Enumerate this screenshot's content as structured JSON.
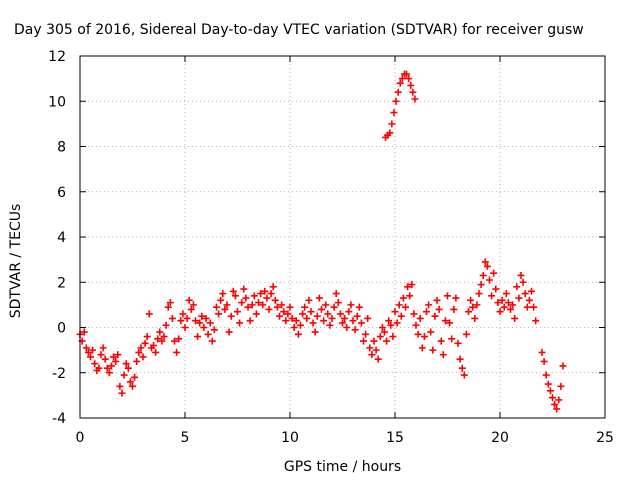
{
  "chart_data": {
    "type": "scatter",
    "title": "Day 305 of 2016, Sidereal Day-to-day VTEC variation (SDTVAR) for receiver gusw",
    "xlabel": "GPS time / hours",
    "ylabel": "SDTVAR / TECUs",
    "xlim": [
      0,
      25
    ],
    "ylim": [
      -4,
      12
    ],
    "x_ticks": [
      0,
      5,
      10,
      15,
      20,
      25
    ],
    "y_ticks": [
      -4,
      -2,
      0,
      2,
      4,
      6,
      8,
      10,
      12
    ],
    "x_tick_labels": [
      "0",
      "5",
      "10",
      "15",
      "20",
      "25"
    ],
    "y_tick_labels": [
      "-4",
      "-2",
      "0",
      "2",
      "4",
      "6",
      "8",
      "10",
      "12"
    ],
    "grid": true,
    "marker": "+",
    "color": "#ff0000",
    "series": [
      {
        "name": "SDTVAR",
        "points": [
          [
            0.0,
            -0.3
          ],
          [
            0.1,
            -0.6
          ],
          [
            0.2,
            -0.2
          ],
          [
            0.3,
            -0.9
          ],
          [
            0.4,
            -1.1
          ],
          [
            0.5,
            -1.3
          ],
          [
            0.6,
            -1.0
          ],
          [
            0.7,
            -1.6
          ],
          [
            0.8,
            -1.9
          ],
          [
            0.9,
            -1.8
          ],
          [
            1.0,
            -1.2
          ],
          [
            1.1,
            -0.9
          ],
          [
            1.2,
            -1.4
          ],
          [
            1.3,
            -1.8
          ],
          [
            1.4,
            -2.0
          ],
          [
            1.5,
            -1.7
          ],
          [
            1.6,
            -1.3
          ],
          [
            1.7,
            -1.5
          ],
          [
            1.8,
            -1.2
          ],
          [
            1.9,
            -2.6
          ],
          [
            2.0,
            -2.9
          ],
          [
            2.1,
            -2.1
          ],
          [
            2.2,
            -1.6
          ],
          [
            2.3,
            -1.8
          ],
          [
            2.4,
            -2.4
          ],
          [
            2.5,
            -2.6
          ],
          [
            2.6,
            -2.2
          ],
          [
            2.7,
            -1.5
          ],
          [
            2.8,
            -1.1
          ],
          [
            2.9,
            -0.9
          ],
          [
            3.0,
            -1.3
          ],
          [
            3.1,
            -0.7
          ],
          [
            3.2,
            -0.4
          ],
          [
            3.3,
            0.6
          ],
          [
            3.4,
            -0.9
          ],
          [
            3.5,
            -0.8
          ],
          [
            3.6,
            -1.1
          ],
          [
            3.7,
            -0.5
          ],
          [
            3.8,
            -0.2
          ],
          [
            3.9,
            -0.6
          ],
          [
            4.0,
            -0.4
          ],
          [
            4.1,
            0.1
          ],
          [
            4.2,
            0.9
          ],
          [
            4.3,
            1.1
          ],
          [
            4.4,
            0.4
          ],
          [
            4.5,
            -0.6
          ],
          [
            4.6,
            -1.1
          ],
          [
            4.7,
            -0.5
          ],
          [
            4.8,
            0.3
          ],
          [
            4.9,
            0.6
          ],
          [
            5.0,
            0.0
          ],
          [
            5.1,
            0.4
          ],
          [
            5.2,
            1.2
          ],
          [
            5.3,
            0.8
          ],
          [
            5.4,
            1.0
          ],
          [
            5.5,
            0.3
          ],
          [
            5.6,
            -0.4
          ],
          [
            5.7,
            0.2
          ],
          [
            5.8,
            0.5
          ],
          [
            5.9,
            0.0
          ],
          [
            6.0,
            0.4
          ],
          [
            6.1,
            -0.3
          ],
          [
            6.2,
            0.2
          ],
          [
            6.3,
            -0.6
          ],
          [
            6.4,
            -0.1
          ],
          [
            6.5,
            0.9
          ],
          [
            6.6,
            0.6
          ],
          [
            6.7,
            1.2
          ],
          [
            6.8,
            1.5
          ],
          [
            6.9,
            0.8
          ],
          [
            7.0,
            1.0
          ],
          [
            7.1,
            -0.2
          ],
          [
            7.2,
            0.5
          ],
          [
            7.3,
            1.6
          ],
          [
            7.4,
            1.4
          ],
          [
            7.5,
            0.7
          ],
          [
            7.6,
            0.2
          ],
          [
            7.7,
            1.1
          ],
          [
            7.8,
            1.7
          ],
          [
            7.9,
            1.3
          ],
          [
            8.0,
            0.9
          ],
          [
            8.1,
            0.3
          ],
          [
            8.2,
            1.0
          ],
          [
            8.3,
            1.4
          ],
          [
            8.4,
            0.6
          ],
          [
            8.5,
            1.1
          ],
          [
            8.6,
            1.5
          ],
          [
            8.7,
            1.0
          ],
          [
            8.8,
            1.6
          ],
          [
            8.9,
            1.3
          ],
          [
            9.0,
            0.8
          ],
          [
            9.1,
            1.5
          ],
          [
            9.2,
            1.8
          ],
          [
            9.3,
            1.2
          ],
          [
            9.4,
            0.9
          ],
          [
            9.5,
            0.5
          ],
          [
            9.6,
            1.0
          ],
          [
            9.7,
            0.7
          ],
          [
            9.8,
            0.3
          ],
          [
            9.9,
            0.6
          ],
          [
            10.0,
            0.9
          ],
          [
            10.1,
            0.4
          ],
          [
            10.2,
            0.0
          ],
          [
            10.3,
            0.3
          ],
          [
            10.4,
            -0.3
          ],
          [
            10.5,
            0.1
          ],
          [
            10.6,
            0.6
          ],
          [
            10.7,
            0.9
          ],
          [
            10.8,
            0.4
          ],
          [
            10.9,
            1.2
          ],
          [
            11.0,
            0.7
          ],
          [
            11.1,
            0.2
          ],
          [
            11.2,
            -0.2
          ],
          [
            11.3,
            0.5
          ],
          [
            11.4,
            1.3
          ],
          [
            11.5,
            0.8
          ],
          [
            11.6,
            0.3
          ],
          [
            11.7,
            1.0
          ],
          [
            11.8,
            0.6
          ],
          [
            11.9,
            0.1
          ],
          [
            12.0,
            0.4
          ],
          [
            12.1,
            0.9
          ],
          [
            12.2,
            1.5
          ],
          [
            12.3,
            1.1
          ],
          [
            12.4,
            0.6
          ],
          [
            12.5,
            0.2
          ],
          [
            12.6,
            0.4
          ],
          [
            12.7,
            0.0
          ],
          [
            12.8,
            0.7
          ],
          [
            12.9,
            1.0
          ],
          [
            13.0,
            0.3
          ],
          [
            13.1,
            -0.1
          ],
          [
            13.2,
            0.5
          ],
          [
            13.3,
            0.9
          ],
          [
            13.4,
            0.2
          ],
          [
            13.5,
            -0.6
          ],
          [
            13.6,
            -0.3
          ],
          [
            13.7,
            0.4
          ],
          [
            13.8,
            -0.9
          ],
          [
            13.9,
            -1.2
          ],
          [
            14.0,
            -0.6
          ],
          [
            14.1,
            -1.0
          ],
          [
            14.2,
            -1.4
          ],
          [
            14.3,
            -0.4
          ],
          [
            14.4,
            0.0
          ],
          [
            14.5,
            -0.2
          ],
          [
            14.6,
            -0.6
          ],
          [
            14.7,
            0.3
          ],
          [
            14.8,
            0.1
          ],
          [
            14.9,
            -0.4
          ],
          [
            15.0,
            0.7
          ],
          [
            15.1,
            0.2
          ],
          [
            15.2,
            1.0
          ],
          [
            15.3,
            0.5
          ],
          [
            15.4,
            1.3
          ],
          [
            15.5,
            0.9
          ],
          [
            15.6,
            1.8
          ],
          [
            15.7,
            1.4
          ],
          [
            15.8,
            1.9
          ],
          [
            15.9,
            0.6
          ],
          [
            16.0,
            0.1
          ],
          [
            16.1,
            -0.3
          ],
          [
            16.2,
            0.4
          ],
          [
            16.3,
            -0.9
          ],
          [
            16.4,
            -0.4
          ],
          [
            16.5,
            0.7
          ],
          [
            16.6,
            1.0
          ],
          [
            16.7,
            -0.2
          ],
          [
            16.8,
            -1.0
          ],
          [
            16.9,
            0.5
          ],
          [
            17.0,
            1.2
          ],
          [
            17.1,
            0.8
          ],
          [
            17.2,
            -0.6
          ],
          [
            17.3,
            -1.2
          ],
          [
            17.4,
            0.3
          ],
          [
            17.5,
            1.4
          ],
          [
            17.6,
            0.2
          ],
          [
            17.7,
            -0.5
          ],
          [
            17.8,
            0.8
          ],
          [
            17.9,
            1.3
          ],
          [
            18.0,
            -0.7
          ],
          [
            18.1,
            -1.4
          ],
          [
            18.2,
            -1.8
          ],
          [
            18.3,
            -2.1
          ],
          [
            18.4,
            -0.3
          ],
          [
            18.5,
            0.7
          ],
          [
            18.6,
            1.2
          ],
          [
            18.7,
            0.9
          ],
          [
            18.8,
            0.4
          ],
          [
            18.9,
            1.0
          ],
          [
            19.0,
            1.5
          ],
          [
            19.1,
            1.9
          ],
          [
            19.2,
            2.3
          ],
          [
            19.3,
            2.9
          ],
          [
            19.4,
            2.7
          ],
          [
            19.5,
            2.1
          ],
          [
            19.6,
            1.4
          ],
          [
            19.7,
            2.4
          ],
          [
            19.8,
            1.7
          ],
          [
            19.9,
            1.1
          ],
          [
            20.0,
            0.7
          ],
          [
            20.1,
            1.2
          ],
          [
            20.2,
            0.9
          ],
          [
            20.3,
            1.5
          ],
          [
            20.4,
            1.1
          ],
          [
            20.5,
            0.8
          ],
          [
            20.6,
            1.0
          ],
          [
            20.7,
            0.4
          ],
          [
            20.8,
            1.8
          ],
          [
            20.9,
            1.3
          ],
          [
            21.0,
            2.3
          ],
          [
            21.1,
            2.0
          ],
          [
            21.2,
            1.5
          ],
          [
            21.3,
            0.9
          ],
          [
            21.4,
            1.2
          ],
          [
            21.5,
            1.6
          ],
          [
            21.6,
            0.9
          ],
          [
            21.7,
            0.3
          ],
          [
            22.0,
            -1.1
          ],
          [
            22.1,
            -1.5
          ],
          [
            22.2,
            -2.1
          ],
          [
            22.3,
            -2.5
          ],
          [
            22.4,
            -2.8
          ],
          [
            22.5,
            -3.1
          ],
          [
            22.6,
            -3.4
          ],
          [
            22.7,
            -3.6
          ],
          [
            22.8,
            -3.2
          ],
          [
            22.9,
            -2.6
          ],
          [
            23.0,
            -1.7
          ],
          [
            14.55,
            8.4
          ],
          [
            14.65,
            8.5
          ],
          [
            14.75,
            8.6
          ],
          [
            14.85,
            9.0
          ],
          [
            14.95,
            9.5
          ],
          [
            15.05,
            10.0
          ],
          [
            15.15,
            10.4
          ],
          [
            15.25,
            10.8
          ],
          [
            15.35,
            11.0
          ],
          [
            15.45,
            11.2
          ],
          [
            15.55,
            11.2
          ],
          [
            15.65,
            11.0
          ],
          [
            15.75,
            10.7
          ],
          [
            15.85,
            10.4
          ],
          [
            15.95,
            10.1
          ]
        ]
      }
    ]
  }
}
